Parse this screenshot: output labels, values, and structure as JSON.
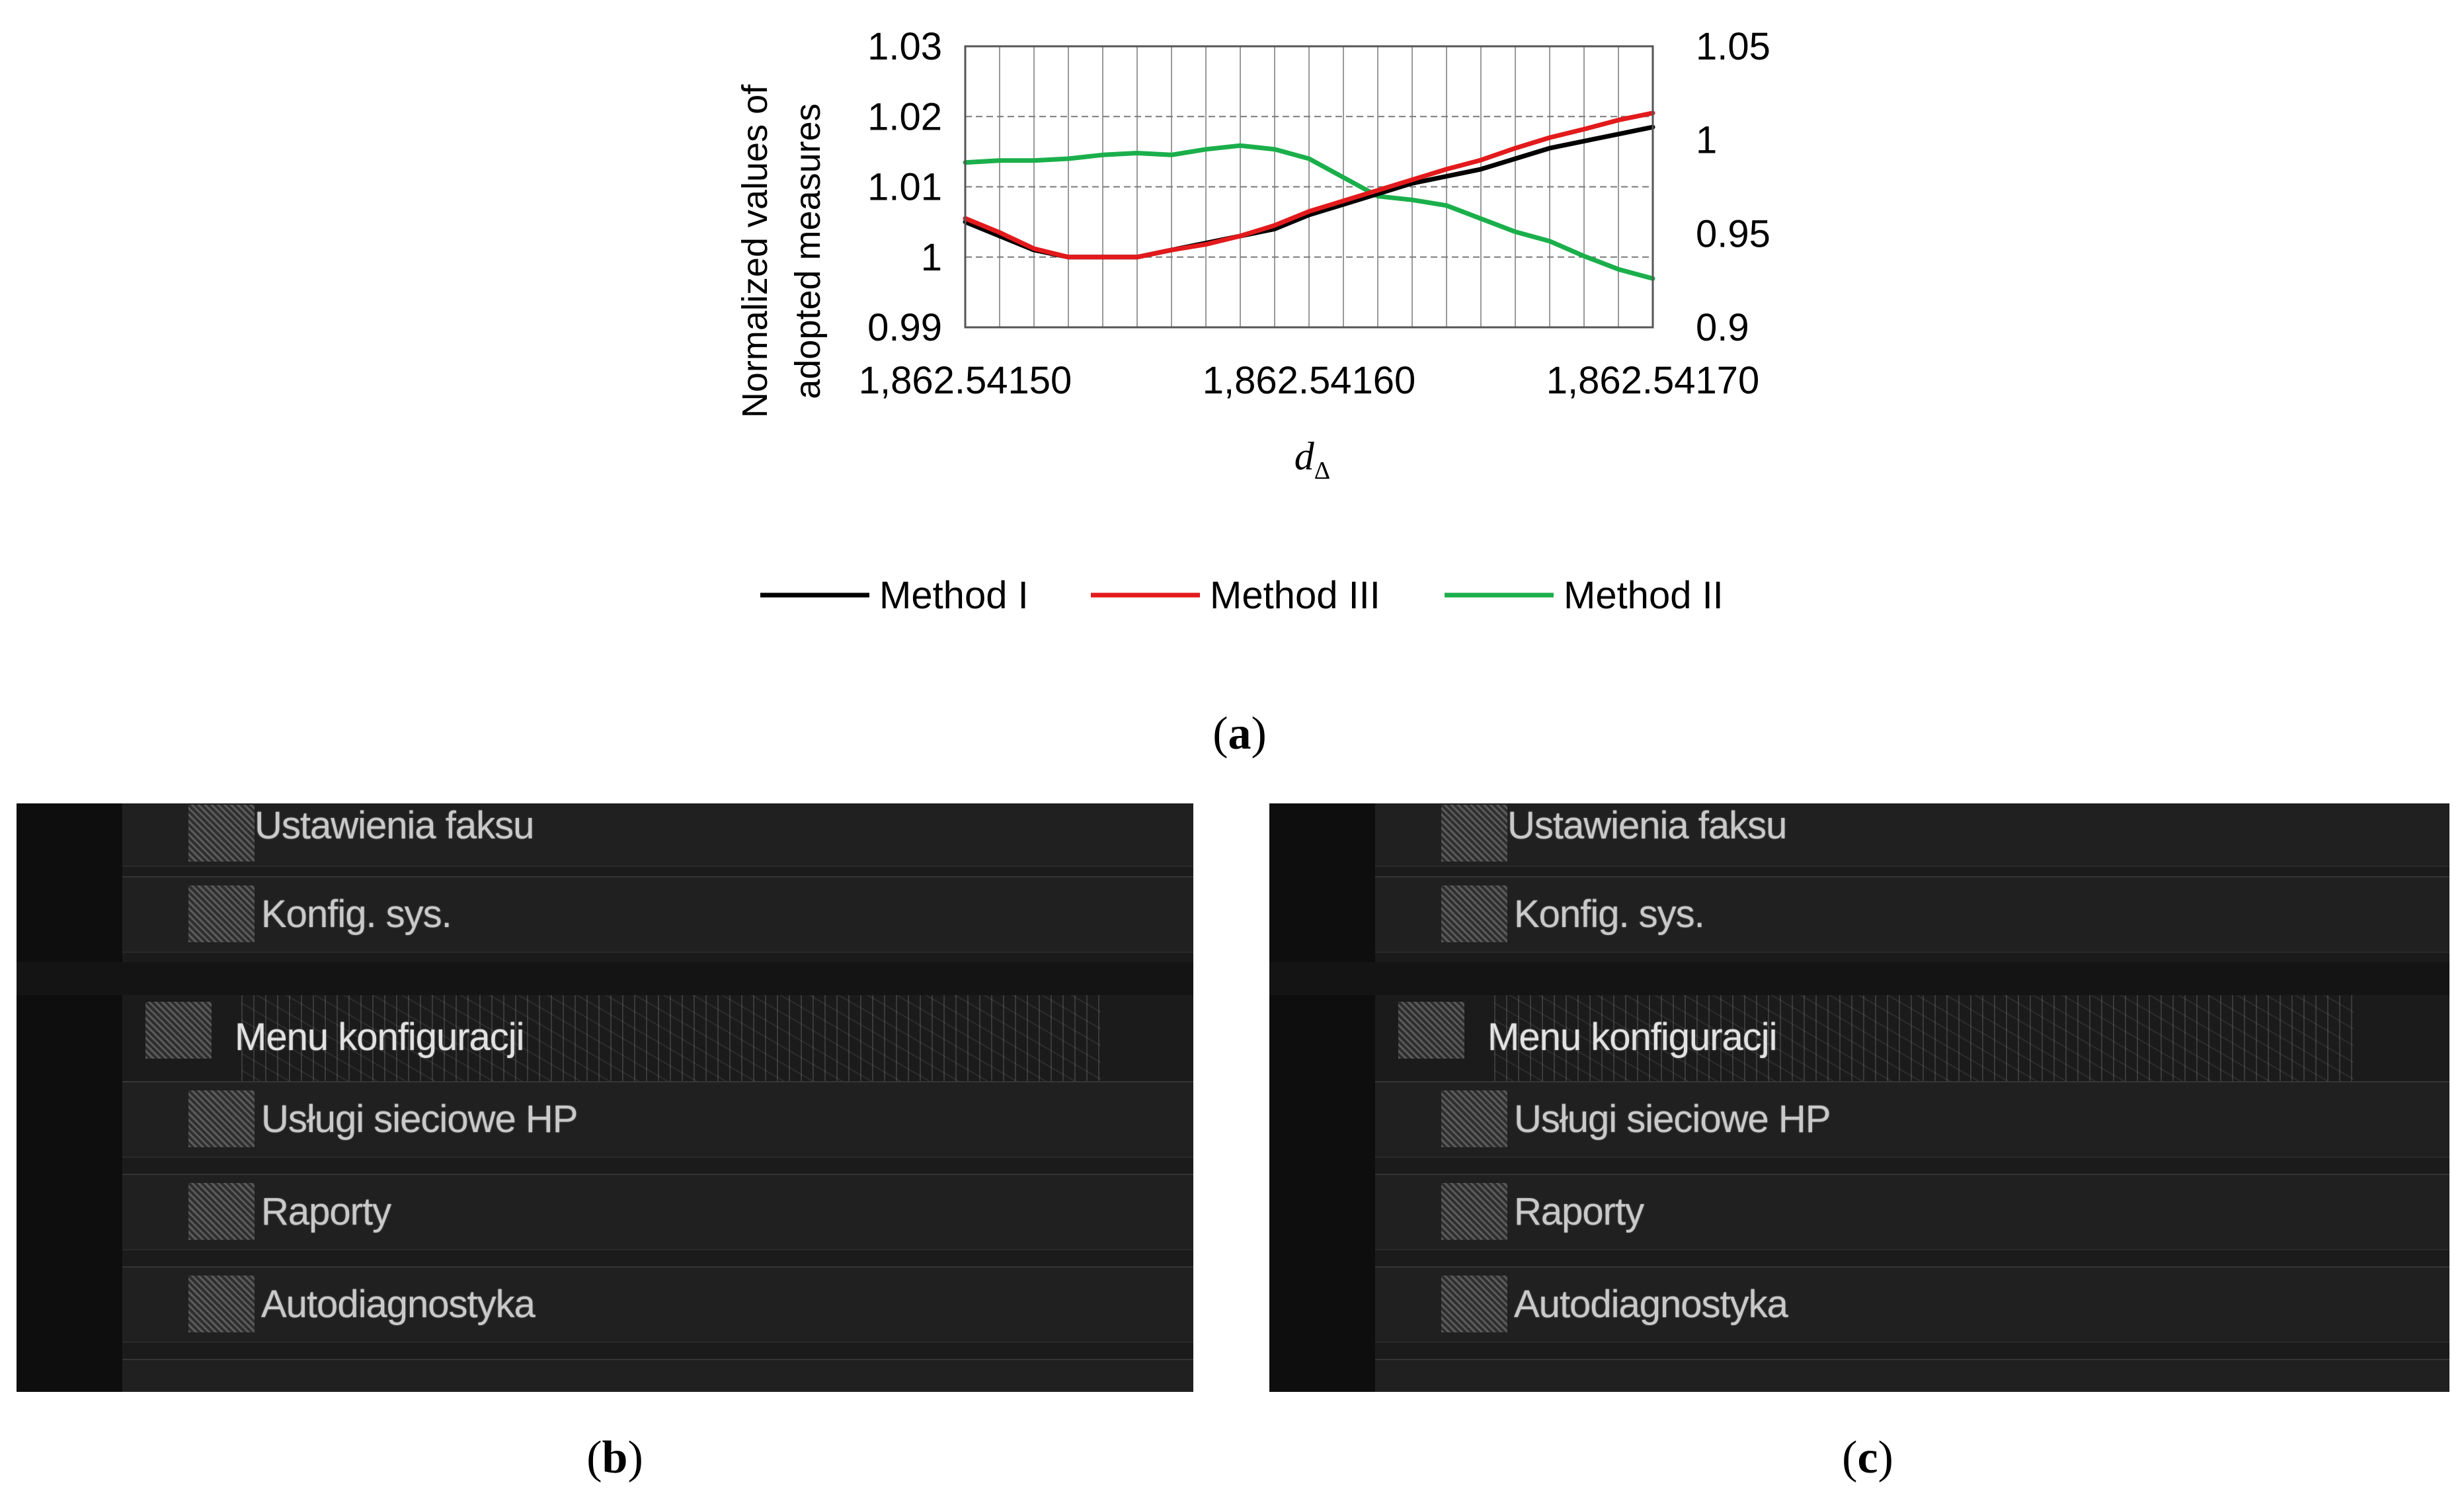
{
  "chart_data": {
    "type": "line",
    "xlabel": "d",
    "xlabel_subscript": "Δ",
    "ylabel_lines": [
      "Normalized values of",
      "adopted measures"
    ],
    "x_ticks": [
      "1,862.54150",
      "1,862.54160",
      "1,862.54170"
    ],
    "y_left_ticks": [
      "1.03",
      "1.02",
      "1.01",
      "1",
      "0.99"
    ],
    "y_right_ticks": [
      "1.05",
      "1",
      "0.95",
      "0.9"
    ],
    "y_left_range": [
      0.99,
      1.03
    ],
    "y_right_range": [
      0.9,
      1.05
    ],
    "x": [
      0,
      1,
      2,
      3,
      4,
      5,
      6,
      7,
      8,
      9,
      10,
      11,
      12,
      13,
      14,
      15,
      16,
      17,
      18,
      19,
      20
    ],
    "series": [
      {
        "name": "Method I",
        "axis": "left",
        "color": "#000000",
        "values": [
          1.005,
          1.003,
          1.001,
          1.0,
          1.0,
          1.0,
          1.001,
          1.002,
          1.003,
          1.004,
          1.006,
          1.0075,
          1.009,
          1.0105,
          1.0115,
          1.0125,
          1.014,
          1.0155,
          1.0165,
          1.0175,
          1.0185
        ]
      },
      {
        "name": "Method III",
        "axis": "left",
        "color": "#e31a1c",
        "values": [
          1.0055,
          1.0035,
          1.0012,
          1.0,
          1.0,
          1.0,
          1.001,
          1.0018,
          1.003,
          1.0045,
          1.0065,
          1.008,
          1.0095,
          1.011,
          1.0125,
          1.0138,
          1.0155,
          1.017,
          1.0182,
          1.0195,
          1.0205
        ]
      },
      {
        "name": "Method II",
        "axis": "right",
        "color": "#1aaf4b",
        "values": [
          0.988,
          0.989,
          0.989,
          0.99,
          0.992,
          0.993,
          0.992,
          0.995,
          0.997,
          0.995,
          0.99,
          0.98,
          0.97,
          0.968,
          0.965,
          0.958,
          0.951,
          0.946,
          0.938,
          0.931,
          0.926
        ]
      }
    ],
    "legend_position": "bottom"
  },
  "captions": {
    "a": "a",
    "b": "b",
    "c": "c"
  },
  "panels": [
    {
      "items": [
        "Ustawienia faksu",
        "Konfig. sys.",
        "Menu konfiguracji",
        "Usługi sieciowe HP",
        "Raporty",
        "Autodiagnostyka"
      ]
    },
    {
      "items": [
        "Ustawienia faksu",
        "Konfig. sys.",
        "Menu konfiguracji",
        "Usługi sieciowe HP",
        "Raporty",
        "Autodiagnostyka"
      ]
    }
  ]
}
